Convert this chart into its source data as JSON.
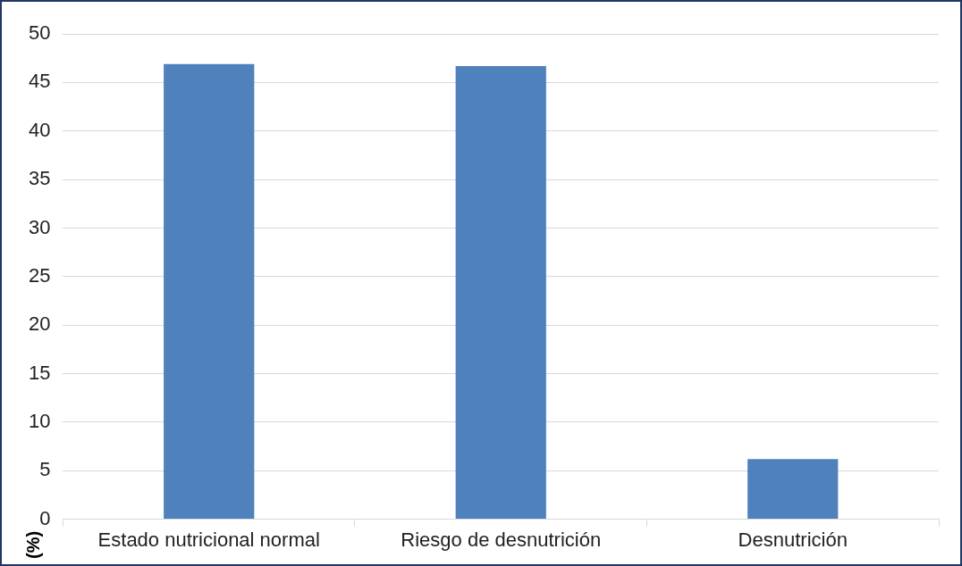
{
  "chart_data": {
    "type": "bar",
    "ylabel": "(%)",
    "categories": [
      "Estado nutricional normal",
      "Riesgo de desnutrición",
      "Desnutrición"
    ],
    "values": [
      46.9,
      46.7,
      6.2
    ],
    "color": "#4f81bd",
    "ylim": [
      0,
      50
    ],
    "yticks": [
      0,
      5,
      10,
      15,
      20,
      25,
      30,
      35,
      40,
      45,
      50
    ],
    "grid": "y",
    "legend": false
  }
}
